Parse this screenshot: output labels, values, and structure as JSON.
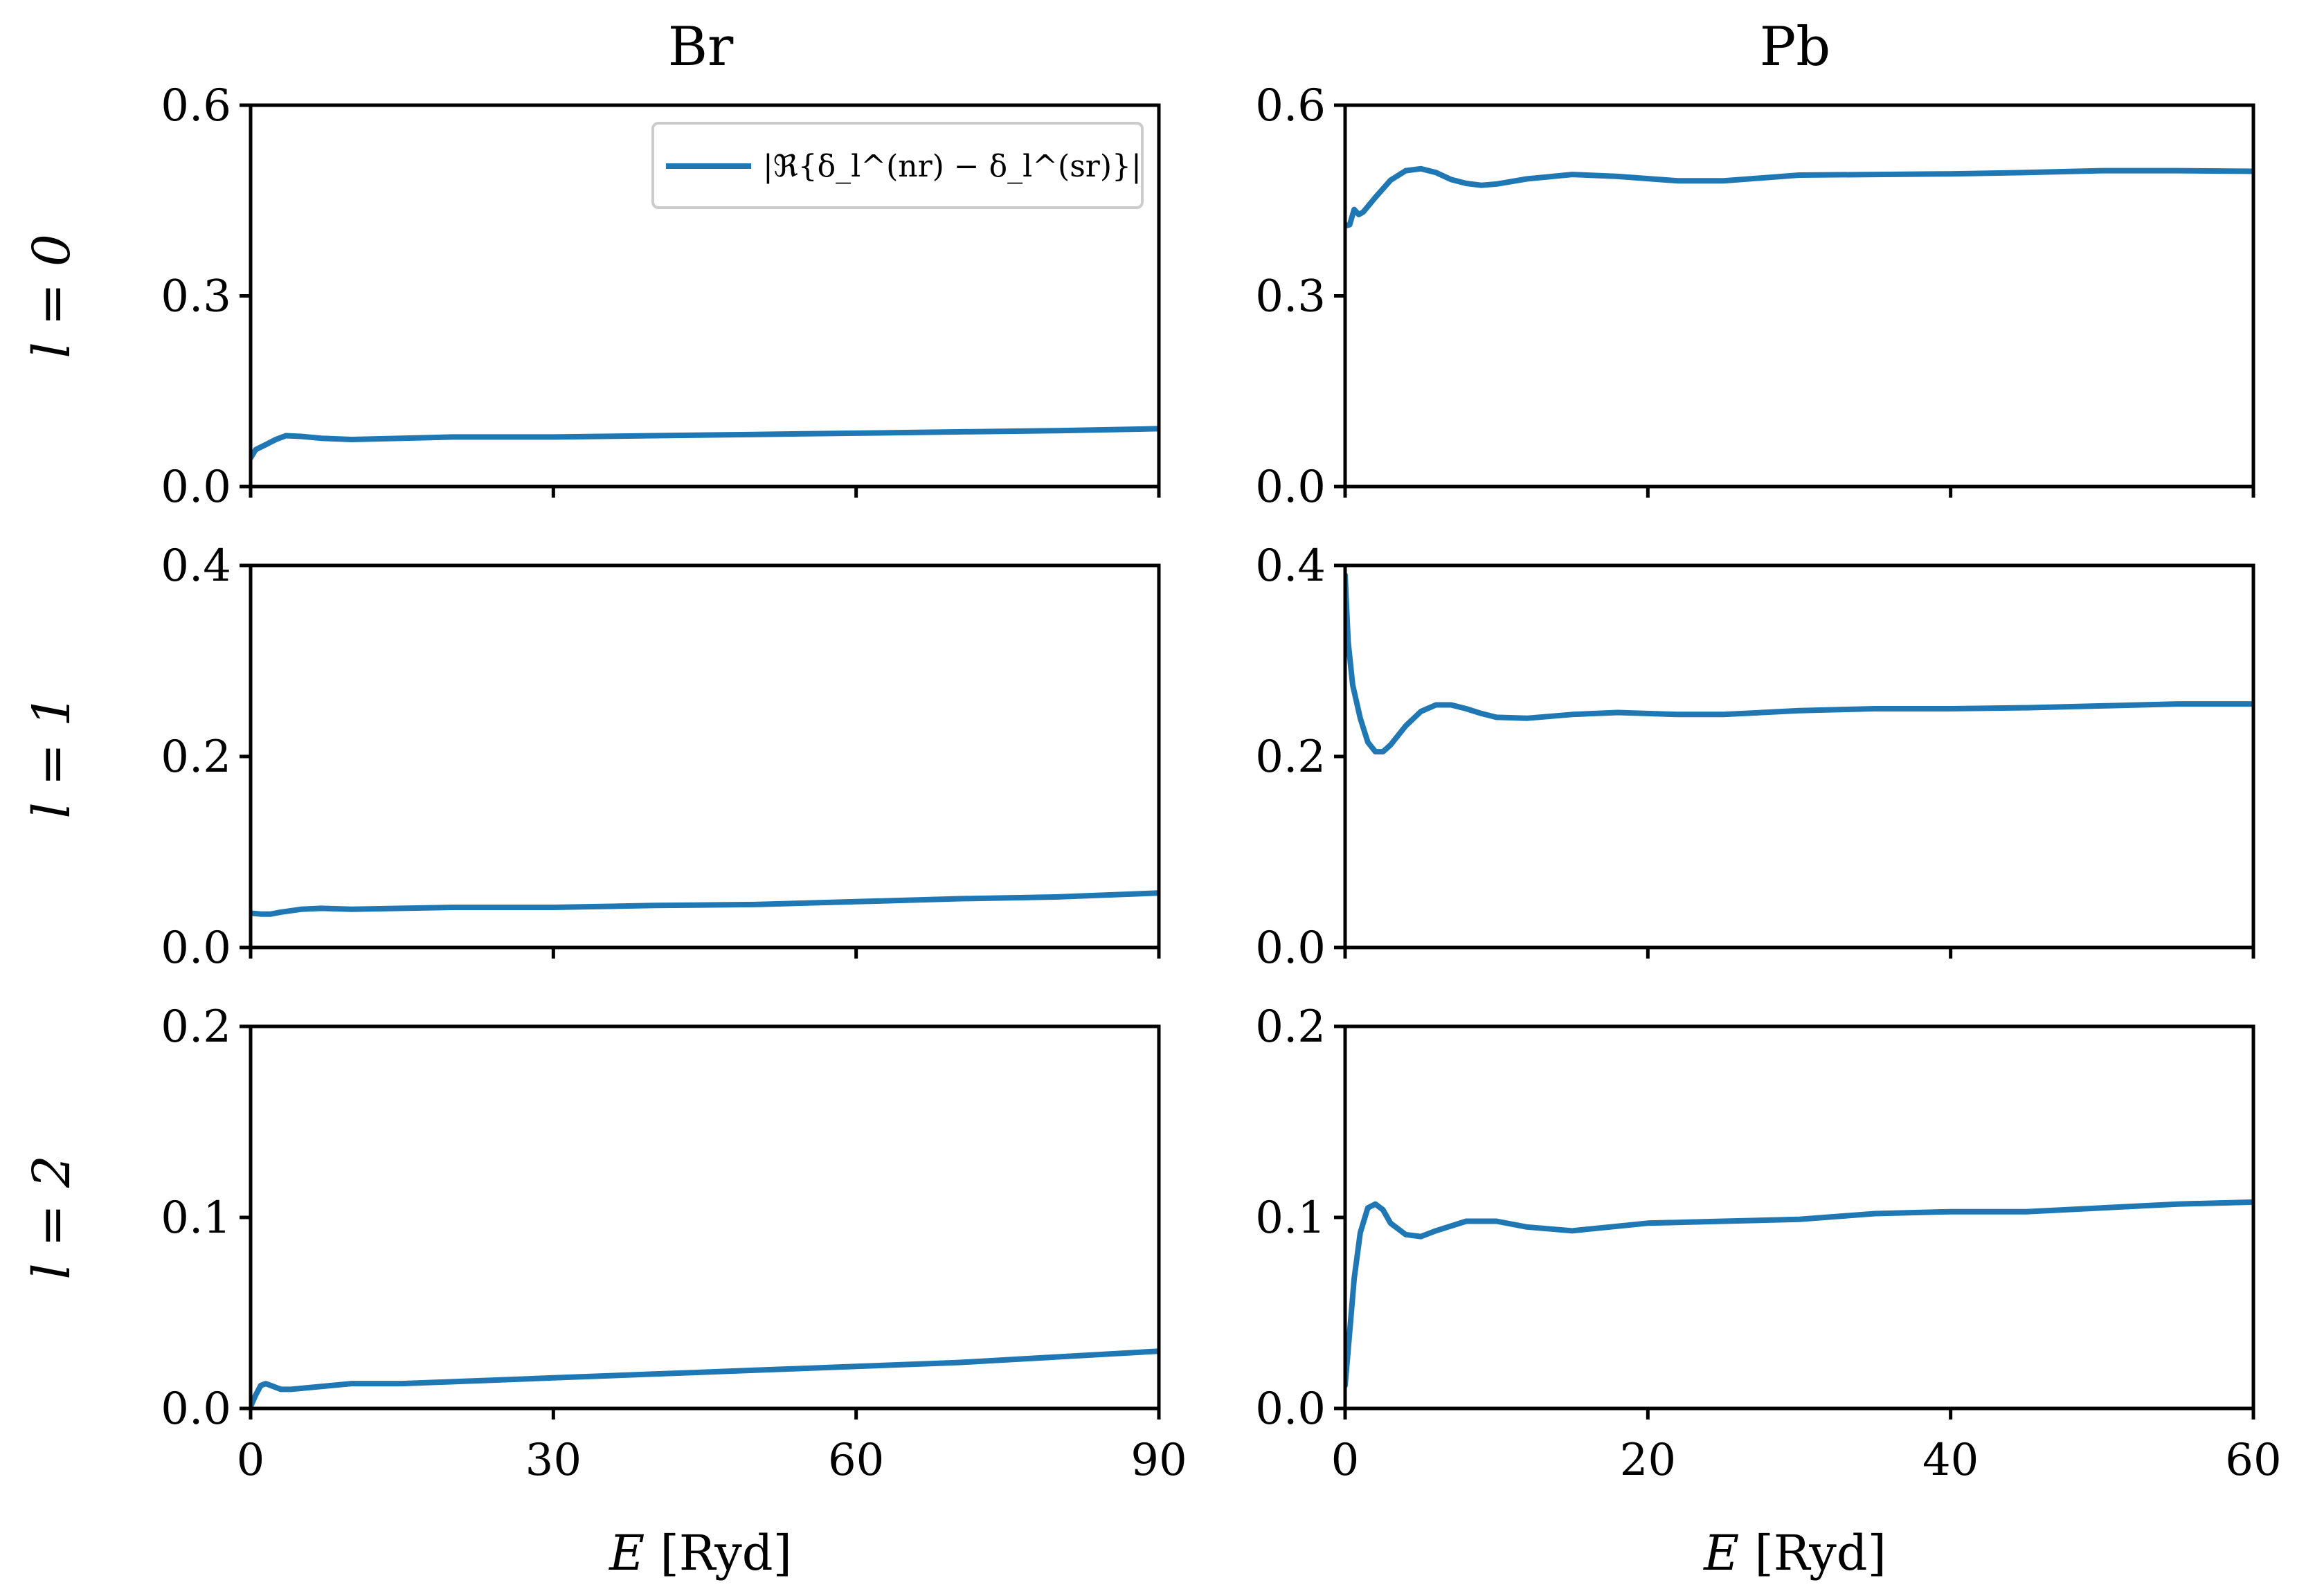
{
  "figure": {
    "column_titles": [
      "Br",
      "Pb"
    ],
    "row_labels": [
      "l = 0",
      "l = 1",
      "l = 2"
    ],
    "xlabel": {
      "symbol": "E",
      "unit": "[Ryd]"
    },
    "legend": {
      "label": "|ℜ{δ_l^(nr) − δ_l^(sr)}|",
      "location": "upper right",
      "panel": "Br, l = 0"
    },
    "series_color": "#1f77b4"
  },
  "chart_data": [
    {
      "type": "line",
      "element": "Br",
      "l": 0,
      "xlim": [
        0,
        90
      ],
      "ylim": [
        0,
        0.6
      ],
      "xticks": [
        0,
        30,
        60,
        90
      ],
      "yticks": [
        0.0,
        0.3,
        0.6
      ],
      "xtick_labels": [
        "0",
        "30",
        "60",
        "90"
      ],
      "ytick_labels": [
        "0.0",
        "0.3",
        "0.6"
      ],
      "series": [
        {
          "name": "|ℜ{δ_l^(nr) − δ_l^(sr)}|",
          "x": [
            0,
            0.5,
            1.5,
            2.5,
            3.5,
            5,
            7,
            10,
            15,
            20,
            30,
            40,
            50,
            60,
            70,
            80,
            90
          ],
          "y": [
            0.045,
            0.058,
            0.066,
            0.074,
            0.08,
            0.079,
            0.076,
            0.074,
            0.076,
            0.078,
            0.078,
            0.08,
            0.082,
            0.084,
            0.086,
            0.088,
            0.091
          ]
        }
      ]
    },
    {
      "type": "line",
      "element": "Br",
      "l": 1,
      "xlim": [
        0,
        90
      ],
      "ylim": [
        0,
        0.4
      ],
      "xticks": [
        0,
        30,
        60,
        90
      ],
      "yticks": [
        0.0,
        0.2,
        0.4
      ],
      "xtick_labels": [
        "0",
        "30",
        "60",
        "90"
      ],
      "ytick_labels": [
        "0.0",
        "0.2",
        "0.4"
      ],
      "series": [
        {
          "name": "|ℜ{δ_l^(nr) − δ_l^(sr)}|",
          "x": [
            0,
            1,
            2,
            3,
            5,
            7,
            10,
            15,
            20,
            30,
            40,
            50,
            60,
            70,
            80,
            90
          ],
          "y": [
            0.036,
            0.035,
            0.035,
            0.037,
            0.04,
            0.041,
            0.04,
            0.041,
            0.042,
            0.042,
            0.044,
            0.045,
            0.048,
            0.051,
            0.053,
            0.057
          ]
        }
      ]
    },
    {
      "type": "line",
      "element": "Br",
      "l": 2,
      "xlim": [
        0,
        90
      ],
      "ylim": [
        0,
        0.2
      ],
      "xticks": [
        0,
        30,
        60,
        90
      ],
      "yticks": [
        0.0,
        0.1,
        0.2
      ],
      "xtick_labels": [
        "0",
        "30",
        "60",
        "90"
      ],
      "ytick_labels": [
        "0.0",
        "0.1",
        "0.2"
      ],
      "series": [
        {
          "name": "|ℜ{δ_l^(nr) − δ_l^(sr)}|",
          "x": [
            0,
            0.5,
            1,
            1.5,
            2,
            3,
            4,
            6,
            8,
            10,
            15,
            20,
            30,
            40,
            50,
            60,
            70,
            80,
            90
          ],
          "y": [
            0.001,
            0.007,
            0.012,
            0.013,
            0.012,
            0.01,
            0.01,
            0.011,
            0.012,
            0.013,
            0.013,
            0.014,
            0.016,
            0.018,
            0.02,
            0.022,
            0.024,
            0.027,
            0.03
          ]
        }
      ]
    },
    {
      "type": "line",
      "element": "Pb",
      "l": 0,
      "xlim": [
        0,
        60
      ],
      "ylim": [
        0,
        0.6
      ],
      "xticks": [
        0,
        20,
        40,
        60
      ],
      "yticks": [
        0.0,
        0.3,
        0.6
      ],
      "xtick_labels": [
        "0",
        "20",
        "40",
        "60"
      ],
      "ytick_labels": [
        "0.0",
        "0.3",
        "0.6"
      ],
      "series": [
        {
          "name": "|ℜ{δ_l^(nr) − δ_l^(sr)}|",
          "x": [
            0,
            0.3,
            0.6,
            0.9,
            1.2,
            2,
            3,
            4,
            5,
            6,
            7,
            8,
            9,
            10,
            12,
            15,
            18,
            22,
            25,
            30,
            35,
            40,
            45,
            50,
            55,
            60
          ],
          "y": [
            0.41,
            0.412,
            0.436,
            0.428,
            0.432,
            0.455,
            0.482,
            0.497,
            0.5,
            0.494,
            0.483,
            0.477,
            0.474,
            0.476,
            0.484,
            0.491,
            0.488,
            0.481,
            0.481,
            0.49,
            0.491,
            0.492,
            0.494,
            0.497,
            0.497,
            0.496
          ]
        }
      ]
    },
    {
      "type": "line",
      "element": "Pb",
      "l": 1,
      "xlim": [
        0,
        60
      ],
      "ylim": [
        0,
        0.4
      ],
      "xticks": [
        0,
        20,
        40,
        60
      ],
      "yticks": [
        0.0,
        0.2,
        0.4
      ],
      "xtick_labels": [
        "0",
        "20",
        "40",
        "60"
      ],
      "ytick_labels": [
        "0.0",
        "0.2",
        "0.4"
      ],
      "series": [
        {
          "name": "|ℜ{δ_l^(nr) − δ_l^(sr)}|",
          "x": [
            0,
            0.2,
            0.5,
            1,
            1.5,
            2,
            2.5,
            3,
            4,
            5,
            6,
            7,
            8,
            9,
            10,
            12,
            15,
            18,
            22,
            25,
            30,
            35,
            40,
            45,
            50,
            55,
            60
          ],
          "y": [
            0.39,
            0.32,
            0.275,
            0.24,
            0.215,
            0.205,
            0.205,
            0.212,
            0.232,
            0.247,
            0.254,
            0.254,
            0.25,
            0.245,
            0.241,
            0.24,
            0.244,
            0.246,
            0.244,
            0.244,
            0.248,
            0.25,
            0.25,
            0.251,
            0.253,
            0.255,
            0.255
          ]
        }
      ]
    },
    {
      "type": "line",
      "element": "Pb",
      "l": 2,
      "xlim": [
        0,
        60
      ],
      "ylim": [
        0,
        0.2
      ],
      "xticks": [
        0,
        20,
        40,
        60
      ],
      "yticks": [
        0.0,
        0.1,
        0.2
      ],
      "xtick_labels": [
        "0",
        "20",
        "40",
        "60"
      ],
      "ytick_labels": [
        "0.0",
        "0.1",
        "0.2"
      ],
      "series": [
        {
          "name": "|ℜ{δ_l^(nr) − δ_l^(sr)}|",
          "x": [
            0,
            0.3,
            0.6,
            1,
            1.5,
            2,
            2.5,
            3,
            4,
            5,
            6,
            8,
            10,
            12,
            15,
            20,
            25,
            30,
            35,
            40,
            45,
            50,
            55,
            60
          ],
          "y": [
            0.012,
            0.04,
            0.068,
            0.092,
            0.105,
            0.107,
            0.104,
            0.097,
            0.091,
            0.09,
            0.093,
            0.098,
            0.098,
            0.095,
            0.093,
            0.097,
            0.098,
            0.099,
            0.102,
            0.103,
            0.103,
            0.105,
            0.107,
            0.108
          ]
        }
      ]
    }
  ]
}
